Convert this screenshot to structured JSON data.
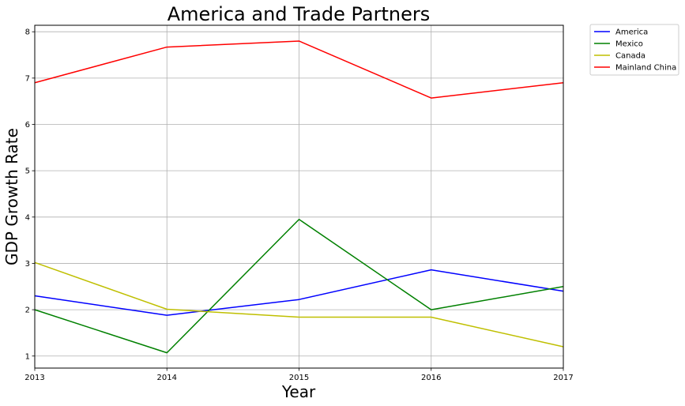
{
  "chart_data": {
    "type": "line",
    "title": "America and Trade Partners",
    "xlabel": "Year",
    "ylabel": "GDP Growth Rate",
    "x": [
      2013,
      2014,
      2015,
      2016,
      2017
    ],
    "xlim": [
      2013,
      2017
    ],
    "ylim": [
      0.74,
      8.14
    ],
    "yticks": [
      1,
      2,
      3,
      4,
      5,
      6,
      7,
      8
    ],
    "grid": true,
    "legend_position": "outside-top-right",
    "series": [
      {
        "name": "America",
        "color": "#0000ff",
        "values": [
          2.3,
          1.88,
          2.22,
          2.86,
          2.4
        ]
      },
      {
        "name": "Mexico",
        "color": "#008000",
        "values": [
          2.0,
          1.07,
          3.95,
          2.0,
          2.5
        ]
      },
      {
        "name": "Canada",
        "color": "#bfbf00",
        "values": [
          3.02,
          2.01,
          1.84,
          1.84,
          1.2
        ]
      },
      {
        "name": "Mainland China",
        "color": "#ff0000",
        "values": [
          6.9,
          7.67,
          7.8,
          6.57,
          6.9
        ]
      }
    ]
  }
}
